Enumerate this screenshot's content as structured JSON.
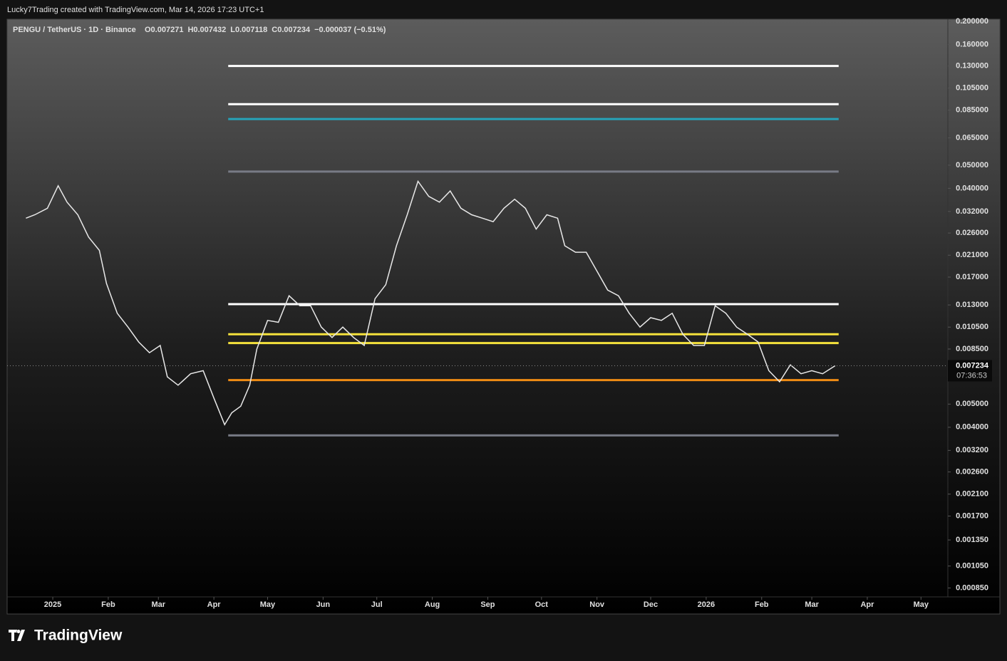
{
  "header": {
    "attribution": "Lucky7Trading created with TradingView.com, Mar 14, 2026 17:23 UTC+1",
    "symbol": "PENGU / TetherUS · 1D · Binance",
    "ohlc": [
      "O0.007271",
      "H0.007432",
      "L0.007118",
      "C0.007234",
      "−0.000037 (−0.51%)"
    ]
  },
  "chart_data": {
    "type": "line",
    "log_scale": true,
    "grid": false,
    "x": [
      -15,
      -10,
      -3,
      3,
      8,
      14,
      20,
      26,
      30,
      36,
      42,
      48,
      54,
      60,
      64,
      70,
      77,
      84,
      90,
      96,
      100,
      105,
      110,
      114,
      120,
      126,
      132,
      138,
      144,
      150,
      156,
      162,
      168,
      174,
      180,
      186,
      192,
      198,
      204,
      210,
      216,
      222,
      228,
      234,
      240,
      246,
      252,
      258,
      264,
      270,
      276,
      282,
      286,
      292,
      298,
      304,
      310,
      316,
      322,
      328,
      334,
      340,
      346,
      352,
      358,
      364,
      370,
      376,
      382,
      388,
      394,
      400,
      406,
      412,
      418,
      424,
      430,
      437
    ],
    "series": [
      {
        "name": "PENGU",
        "color": "#e8e8e8",
        "values": [
          0.03,
          0.031,
          0.033,
          0.041,
          0.035,
          0.031,
          0.025,
          0.022,
          0.016,
          0.012,
          0.0105,
          0.0091,
          0.0082,
          0.0088,
          0.0065,
          0.006,
          0.0067,
          0.0069,
          0.0053,
          0.0041,
          0.0046,
          0.0049,
          0.006,
          0.0085,
          0.0112,
          0.011,
          0.0142,
          0.0129,
          0.0129,
          0.0105,
          0.0095,
          0.0105,
          0.0095,
          0.0088,
          0.0138,
          0.0158,
          0.023,
          0.031,
          0.0428,
          0.037,
          0.035,
          0.039,
          0.033,
          0.031,
          0.03,
          0.029,
          0.033,
          0.036,
          0.033,
          0.027,
          0.031,
          0.03,
          0.023,
          0.0216,
          0.0216,
          0.018,
          0.015,
          0.0142,
          0.012,
          0.0105,
          0.0115,
          0.0112,
          0.012,
          0.0098,
          0.0088,
          0.0088,
          0.0129,
          0.012,
          0.0105,
          0.0098,
          0.0091,
          0.0069,
          0.0062,
          0.0073,
          0.0067,
          0.0069,
          0.0067,
          0.007234
        ]
      }
    ],
    "levels": [
      {
        "value": 0.13,
        "color": "#ffffff"
      },
      {
        "value": 0.09,
        "color": "#ffffff"
      },
      {
        "value": 0.078,
        "color": "#26a3b8"
      },
      {
        "value": 0.047,
        "color": "#787b86"
      },
      {
        "value": 0.0131,
        "color": "#ffffff"
      },
      {
        "value": 0.0098,
        "color": "#f5e23c"
      },
      {
        "value": 0.009,
        "color": "#f5e23c"
      },
      {
        "value": 0.0063,
        "color": "#f08c14"
      },
      {
        "value": 0.0037,
        "color": "#787b86"
      }
    ],
    "level_range": [
      98,
      439
    ],
    "last_price": 0.007234,
    "countdown": "07:36:53",
    "xlim": [
      -25.5,
      500
    ],
    "ylim": [
      0.00078,
      0.204
    ],
    "xticks": [
      {
        "value": 0,
        "label": "2025"
      },
      {
        "value": 31,
        "label": "Feb"
      },
      {
        "value": 59,
        "label": "Mar"
      },
      {
        "value": 90,
        "label": "Apr"
      },
      {
        "value": 120,
        "label": "May"
      },
      {
        "value": 151,
        "label": "Jun"
      },
      {
        "value": 181,
        "label": "Jul"
      },
      {
        "value": 212,
        "label": "Aug"
      },
      {
        "value": 243,
        "label": "Sep"
      },
      {
        "value": 273,
        "label": "Oct"
      },
      {
        "value": 304,
        "label": "Nov"
      },
      {
        "value": 334,
        "label": "Dec"
      },
      {
        "value": 365,
        "label": "2026"
      },
      {
        "value": 396,
        "label": "Feb"
      },
      {
        "value": 424,
        "label": "Mar"
      },
      {
        "value": 455,
        "label": "Apr"
      },
      {
        "value": 485,
        "label": "May"
      }
    ],
    "yticks": [
      {
        "value": 0.2,
        "label": "0.200000"
      },
      {
        "value": 0.16,
        "label": "0.160000"
      },
      {
        "value": 0.13,
        "label": "0.130000"
      },
      {
        "value": 0.105,
        "label": "0.105000"
      },
      {
        "value": 0.085,
        "label": "0.085000"
      },
      {
        "value": 0.065,
        "label": "0.065000"
      },
      {
        "value": 0.05,
        "label": "0.050000"
      },
      {
        "value": 0.04,
        "label": "0.040000"
      },
      {
        "value": 0.032,
        "label": "0.032000"
      },
      {
        "value": 0.026,
        "label": "0.026000"
      },
      {
        "value": 0.021,
        "label": "0.021000"
      },
      {
        "value": 0.017,
        "label": "0.017000"
      },
      {
        "value": 0.013,
        "label": "0.013000"
      },
      {
        "value": 0.0105,
        "label": "0.010500"
      },
      {
        "value": 0.0085,
        "label": "0.008500"
      },
      {
        "value": 0.005,
        "label": "0.005000"
      },
      {
        "value": 0.004,
        "label": "0.004000"
      },
      {
        "value": 0.0032,
        "label": "0.003200"
      },
      {
        "value": 0.0026,
        "label": "0.002600"
      },
      {
        "value": 0.0021,
        "label": "0.002100"
      },
      {
        "value": 0.0017,
        "label": "0.001700"
      },
      {
        "value": 0.00135,
        "label": "0.001350"
      },
      {
        "value": 0.00105,
        "label": "0.001050"
      },
      {
        "value": 0.00085,
        "label": "0.000850"
      }
    ]
  },
  "footer": {
    "logo": "TradingView"
  }
}
